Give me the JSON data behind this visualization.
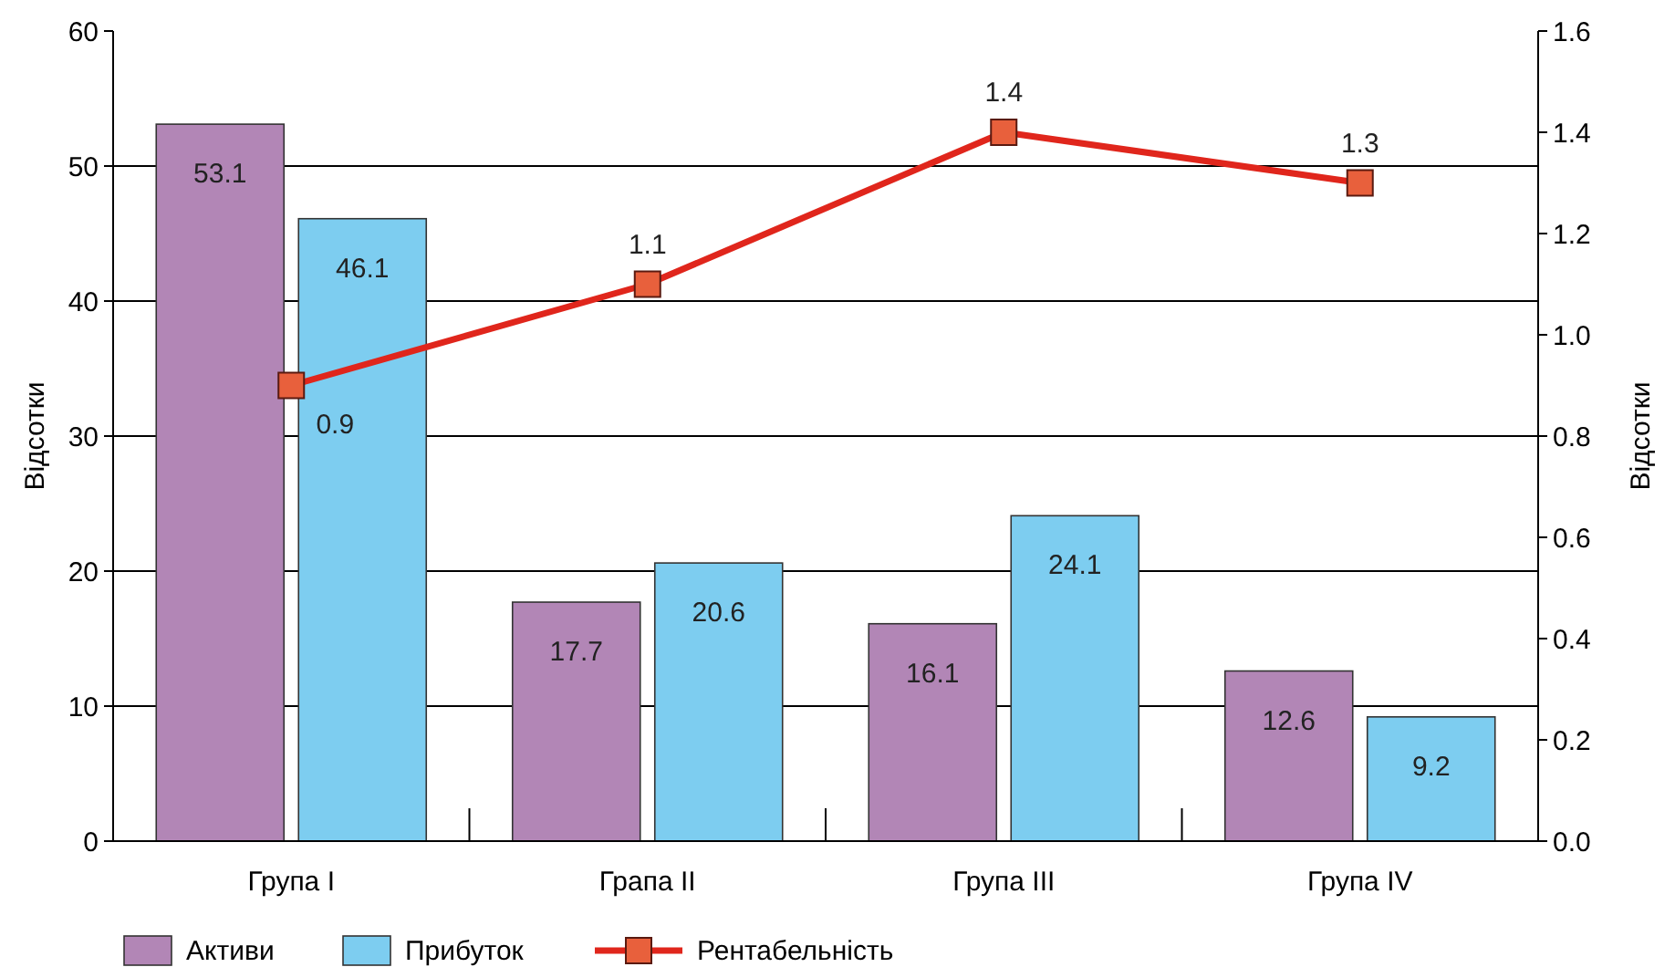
{
  "chart_data": {
    "type": "bar",
    "ylabel": "Відсотки",
    "y2label": "Відсотки",
    "categories": [
      "Група I",
      "Грапа II",
      "Група III",
      "Група IV"
    ],
    "series": [
      {
        "name": "Активи",
        "color": "#b286b6",
        "values": [
          53.1,
          17.7,
          16.1,
          12.6
        ]
      },
      {
        "name": "Прибуток",
        "color": "#7dcdf0",
        "values": [
          46.1,
          20.6,
          24.1,
          9.2
        ]
      },
      {
        "name": "Рентабельність",
        "type": "line",
        "axis": "y2",
        "color": "#e0261c",
        "values": [
          0.9,
          1.1,
          1.4,
          1.3
        ],
        "marker": "square"
      }
    ],
    "ylim": [
      0,
      60
    ],
    "yticks": [
      0,
      10,
      20,
      30,
      40,
      50,
      60
    ],
    "y2lim": [
      0,
      1.6
    ],
    "y2ticks": [
      {
        "value": 0,
        "label": "0.0"
      },
      0.2,
      0.4,
      0.6,
      0.8,
      {
        "value": 1,
        "label": "1.0"
      },
      1.2,
      1.4,
      1.6
    ],
    "grid": "y",
    "legend": "bottom",
    "data_labels": true
  }
}
